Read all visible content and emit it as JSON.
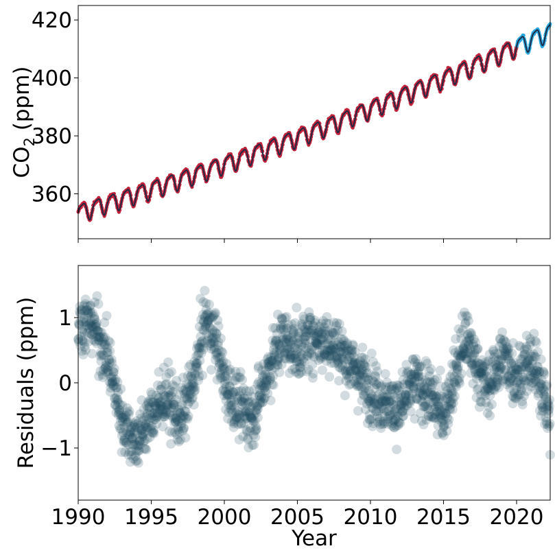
{
  "chart_data": [
    {
      "type": "line",
      "ylabel_main": "CO",
      "ylabel_sub": "2",
      "ylabel_unit": " (ppm)",
      "xlim": [
        1990,
        2022.3
      ],
      "ylim": [
        344.5,
        425
      ],
      "yticks": [
        "360",
        "380",
        "400",
        "420"
      ],
      "series": [
        {
          "kind": "observed-1990-2019",
          "color": "#c4213b"
        },
        {
          "kind": "model-fit",
          "color": "#1f2a44"
        },
        {
          "kind": "observed-2020-2022",
          "color": "#29a9e1"
        }
      ],
      "trend": {
        "start_year": 1990,
        "start_ppm": 353.6,
        "linear_ppm_per_yr": 1.55,
        "quadratic": 0.012,
        "seasonal_amplitude": 3.0
      }
    },
    {
      "type": "scatter",
      "ylabel": "Residuals (ppm)",
      "xlabel": "Year",
      "xlim": [
        1990,
        2022.3
      ],
      "ylim": [
        -1.8,
        1.8
      ],
      "xticks": [
        "1990",
        "1995",
        "2000",
        "2005",
        "2010",
        "2015",
        "2020"
      ],
      "yticks": [
        "−1",
        "0",
        "1"
      ],
      "color": "#1f4a60",
      "point_opacity": 0.2,
      "residual_anchors": [
        [
          1990,
          0.9
        ],
        [
          1991,
          0.9
        ],
        [
          1992,
          0.4
        ],
        [
          1993,
          -0.6
        ],
        [
          1994,
          -0.9
        ],
        [
          1995,
          -0.5
        ],
        [
          1996,
          -0.2
        ],
        [
          1997,
          -0.6
        ],
        [
          1998,
          0.1
        ],
        [
          1998.7,
          1.0
        ],
        [
          1999.5,
          0.6
        ],
        [
          2000,
          0.0
        ],
        [
          2001,
          -0.4
        ],
        [
          2002,
          -0.5
        ],
        [
          2003,
          0.2
        ],
        [
          2004,
          0.7
        ],
        [
          2005,
          0.5
        ],
        [
          2006,
          0.7
        ],
        [
          2007.5,
          0.6
        ],
        [
          2009,
          0.2
        ],
        [
          2010,
          -0.1
        ],
        [
          2011,
          -0.3
        ],
        [
          2012,
          -0.4
        ],
        [
          2013,
          0.0
        ],
        [
          2014,
          -0.2
        ],
        [
          2015,
          -0.5
        ],
        [
          2016,
          0.3
        ],
        [
          2016.5,
          0.7
        ],
        [
          2017,
          0.4
        ],
        [
          2018,
          -0.1
        ],
        [
          2019,
          0.4
        ],
        [
          2020,
          0.1
        ],
        [
          2021,
          0.3
        ],
        [
          2021.7,
          0.0
        ],
        [
          2022.3,
          -0.6
        ]
      ]
    }
  ]
}
